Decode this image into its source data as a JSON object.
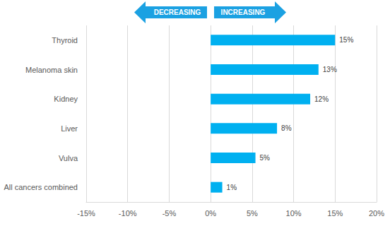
{
  "chart_data": {
    "type": "bar",
    "orientation": "horizontal",
    "categories": [
      "Thyroid",
      "Melanoma skin",
      "Kidney",
      "Liver",
      "Vulva",
      "All cancers combined"
    ],
    "values": [
      15,
      13,
      12,
      8,
      5.4,
      1.4
    ],
    "value_labels": [
      "15%",
      "13%",
      "12%",
      "8%",
      "5%",
      "1%"
    ],
    "data_labels": true,
    "color": "#00b0f0",
    "xlim": [
      -15,
      20
    ],
    "xticks": [
      {
        "value": -15,
        "label": "-15%"
      },
      {
        "value": -10,
        "label": "-10%"
      },
      {
        "value": -5,
        "label": "-5%"
      },
      {
        "value": 0,
        "label": "0%"
      },
      {
        "value": 5,
        "label": "5%"
      },
      {
        "value": 10,
        "label": "10%"
      },
      {
        "value": 15,
        "label": "15%"
      },
      {
        "value": 20,
        "label": "20%"
      }
    ],
    "grid": true,
    "annotations": [
      "DECREASING",
      "INCREASING"
    ]
  }
}
